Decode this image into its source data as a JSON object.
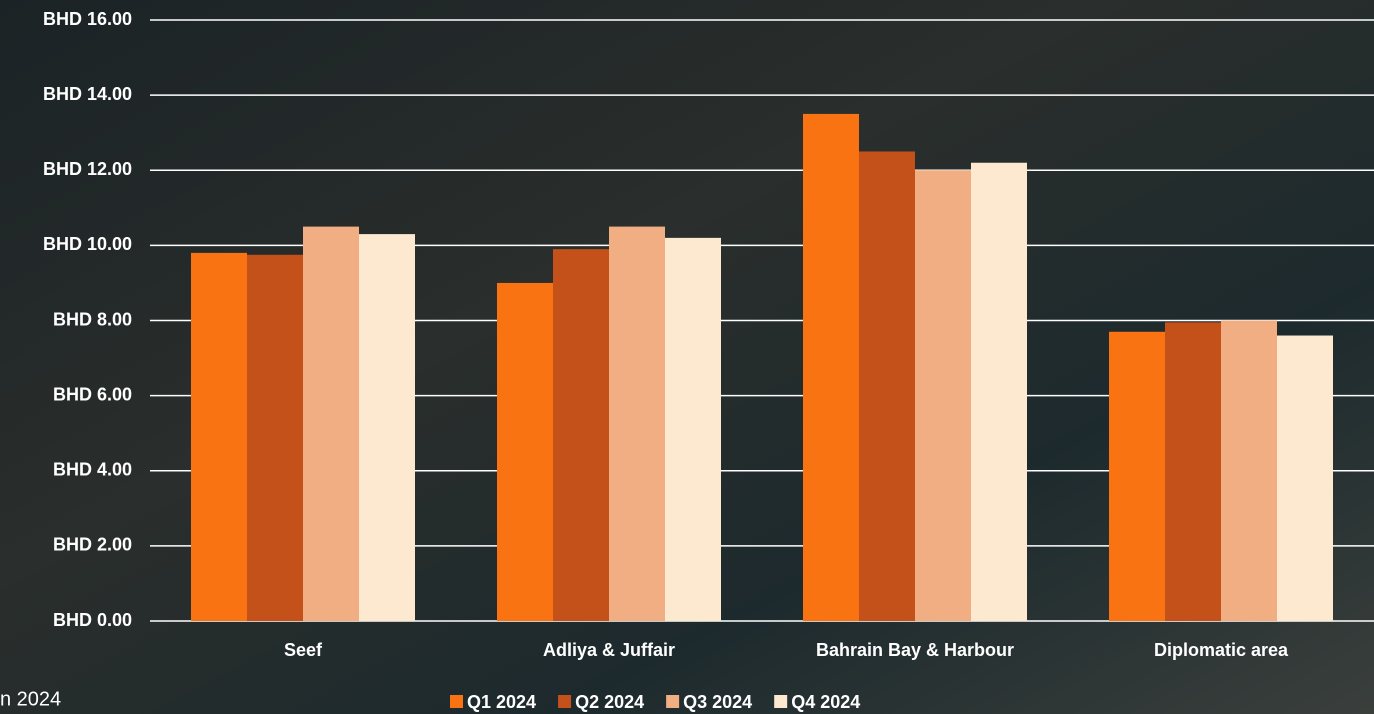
{
  "chart_data": {
    "type": "bar",
    "categories": [
      "Seef",
      "Adliya & Juffair",
      "Bahrain Bay & Harbour",
      "Diplomatic area"
    ],
    "series": [
      {
        "name": "Q1 2024",
        "color": "#f97312",
        "values": [
          9.8,
          9.0,
          13.5,
          7.7
        ]
      },
      {
        "name": "Q2 2024",
        "color": "#c4501a",
        "values": [
          9.75,
          9.9,
          12.5,
          7.95
        ]
      },
      {
        "name": "Q3 2024",
        "color": "#f0ae82",
        "values": [
          10.5,
          10.5,
          12.0,
          8.0
        ]
      },
      {
        "name": "Q4 2024",
        "color": "#fde9cf",
        "values": [
          10.3,
          10.2,
          12.2,
          7.6
        ]
      }
    ],
    "ylim": [
      0,
      16
    ],
    "yticks": [
      {
        "value": 0,
        "label": "BHD 0.00"
      },
      {
        "value": 2,
        "label": "BHD 2.00"
      },
      {
        "value": 4,
        "label": "BHD 4.00"
      },
      {
        "value": 6,
        "label": "BHD 6.00"
      },
      {
        "value": 8,
        "label": "BHD 8.00"
      },
      {
        "value": 10,
        "label": "BHD 10.00"
      },
      {
        "value": 12,
        "label": "BHD 12.00"
      },
      {
        "value": 14,
        "label": "BHD 14.00"
      },
      {
        "value": 16,
        "label": "BHD 16.00"
      }
    ],
    "grid": true,
    "legend": "bottom",
    "annotation": "n 2024"
  }
}
